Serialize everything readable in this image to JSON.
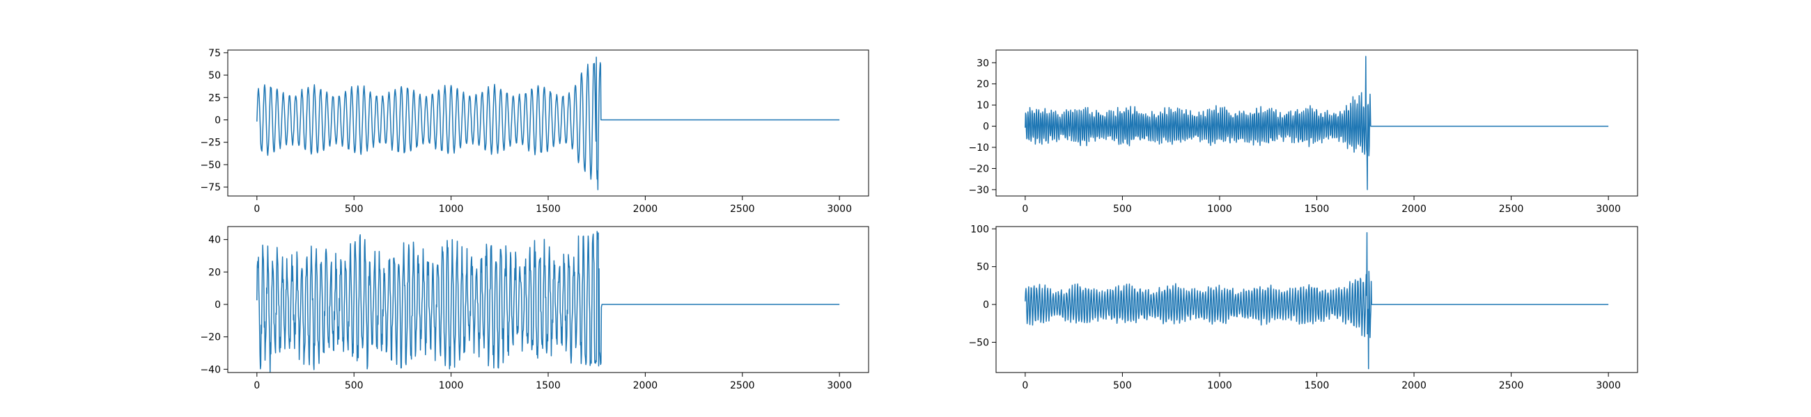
{
  "figure": {
    "line_color": "#1f77b4",
    "background": "#ffffff"
  },
  "chart_data": [
    {
      "type": "line",
      "title": "",
      "xlabel": "",
      "ylabel": "",
      "xlim": [
        -150,
        3150
      ],
      "ylim": [
        -85,
        78
      ],
      "xticks": [
        0,
        500,
        1000,
        1500,
        2000,
        2500,
        3000
      ],
      "yticks": [
        -75,
        -50,
        -25,
        0,
        25,
        50,
        75
      ],
      "grid": false,
      "signal": {
        "active_end": 1770,
        "total_length": 3000,
        "flat_value": 0,
        "base_amplitude": 38,
        "period": 32,
        "noise": 0.05,
        "burst_start": 1620,
        "burst_peak_max": 70,
        "burst_peak_min": -78
      }
    },
    {
      "type": "line",
      "title": "",
      "xlabel": "",
      "ylabel": "",
      "xlim": [
        -150,
        3150
      ],
      "ylim": [
        -33,
        36
      ],
      "xticks": [
        0,
        500,
        1000,
        1500,
        2000,
        2500,
        3000
      ],
      "yticks": [
        -30,
        -20,
        -10,
        0,
        10,
        20,
        30
      ],
      "grid": false,
      "signal": {
        "active_end": 1775,
        "total_length": 3000,
        "flat_value": 0,
        "base_amplitude": 8,
        "period": 11,
        "noise": 0.25,
        "burst_start": 1640,
        "burst_peak_max": 33,
        "burst_peak_min": -30
      }
    },
    {
      "type": "line",
      "title": "",
      "xlabel": "",
      "ylabel": "",
      "xlim": [
        -150,
        3150
      ],
      "ylim": [
        -42,
        48
      ],
      "xticks": [
        0,
        500,
        1000,
        1500,
        2000,
        2500,
        3000
      ],
      "yticks": [
        -40,
        -20,
        0,
        20,
        40
      ],
      "grid": false,
      "signal": {
        "active_end": 1775,
        "total_length": 3000,
        "flat_value": 0,
        "base_amplitude": 34,
        "period": 25,
        "noise": 0.3,
        "burst_start": 1680,
        "burst_peak_max": 45,
        "burst_peak_min": -38
      }
    },
    {
      "type": "line",
      "title": "",
      "xlabel": "",
      "ylabel": "",
      "xlim": [
        -150,
        3150
      ],
      "ylim": [
        -90,
        103
      ],
      "xticks": [
        0,
        500,
        1000,
        1500,
        2000,
        2500,
        3000
      ],
      "yticks": [
        -50,
        0,
        50,
        100
      ],
      "grid": false,
      "signal": {
        "active_end": 1780,
        "total_length": 3000,
        "flat_value": 0,
        "base_amplitude": 24,
        "period": 14,
        "noise": 0.2,
        "burst_start": 1660,
        "burst_peak_max": 95,
        "burst_peak_min": -85
      }
    }
  ]
}
